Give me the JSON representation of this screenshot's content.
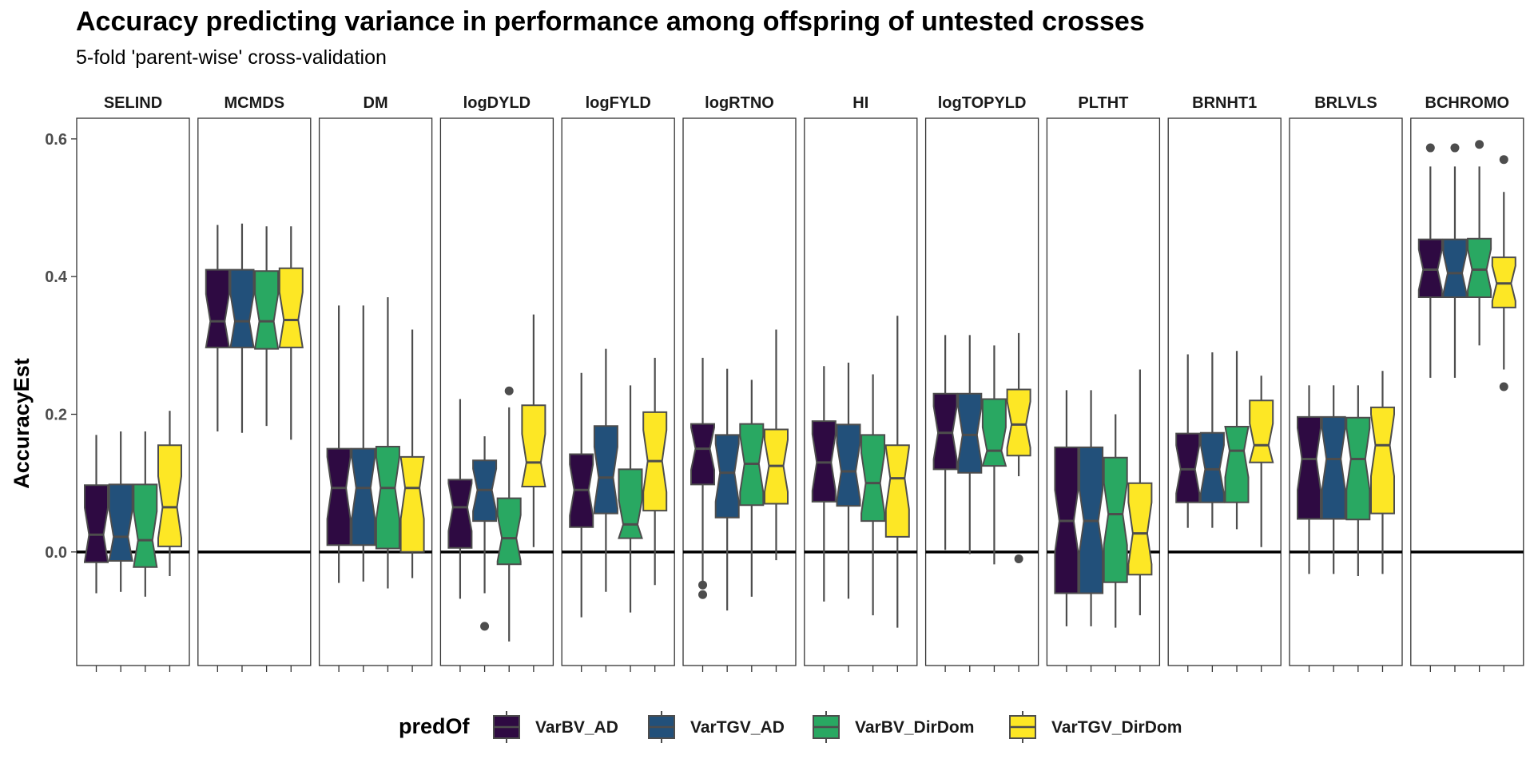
{
  "chart_data": {
    "type": "boxplot",
    "title": "Accuracy predicting variance in performance among offspring of untested crosses",
    "subtitle": "5-fold 'parent-wise' cross-validation",
    "ylabel": "AccuracyEst",
    "xlabel": "",
    "ylim": [
      -0.165,
      0.63
    ],
    "yticks": [
      0.0,
      0.2,
      0.4,
      0.6
    ],
    "ytick_labels": [
      "0.0",
      "0.2",
      "0.4",
      "0.6"
    ],
    "reference_line_y": 0.0,
    "notched": true,
    "legend": {
      "title": "predOf",
      "placement": "bottom",
      "entries": [
        "VarBV_AD",
        "VarTGV_AD",
        "VarBV_DirDom",
        "VarTGV_DirDom"
      ]
    },
    "colors": {
      "VarBV_AD": "#2e0a42",
      "VarTGV_AD": "#22507a",
      "VarBV_DirDom": "#29a862",
      "VarTGV_DirDom": "#fde725",
      "box_outline": "#4d4d4d",
      "reference_line": "#000000"
    },
    "panels": [
      {
        "name": "SELIND",
        "boxes": [
          {
            "min": -0.06,
            "q1": -0.015,
            "median": 0.025,
            "q3": 0.097,
            "max": 0.17,
            "outliers": []
          },
          {
            "min": -0.058,
            "q1": -0.013,
            "median": 0.022,
            "q3": 0.098,
            "max": 0.175,
            "outliers": []
          },
          {
            "min": -0.065,
            "q1": -0.022,
            "median": 0.017,
            "q3": 0.098,
            "max": 0.175,
            "outliers": []
          },
          {
            "min": -0.035,
            "q1": 0.008,
            "median": 0.065,
            "q3": 0.155,
            "max": 0.205,
            "outliers": []
          }
        ]
      },
      {
        "name": "MCMDS",
        "boxes": [
          {
            "min": 0.175,
            "q1": 0.297,
            "median": 0.335,
            "q3": 0.41,
            "max": 0.475,
            "outliers": []
          },
          {
            "min": 0.173,
            "q1": 0.297,
            "median": 0.335,
            "q3": 0.41,
            "max": 0.477,
            "outliers": []
          },
          {
            "min": 0.183,
            "q1": 0.295,
            "median": 0.335,
            "q3": 0.408,
            "max": 0.473,
            "outliers": []
          },
          {
            "min": 0.163,
            "q1": 0.297,
            "median": 0.337,
            "q3": 0.412,
            "max": 0.473,
            "outliers": []
          }
        ]
      },
      {
        "name": "DM",
        "boxes": [
          {
            "min": -0.045,
            "q1": 0.01,
            "median": 0.093,
            "q3": 0.15,
            "max": 0.358,
            "outliers": []
          },
          {
            "min": -0.043,
            "q1": 0.01,
            "median": 0.093,
            "q3": 0.15,
            "max": 0.358,
            "outliers": []
          },
          {
            "min": -0.053,
            "q1": 0.005,
            "median": 0.093,
            "q3": 0.153,
            "max": 0.37,
            "outliers": []
          },
          {
            "min": -0.038,
            "q1": 0.0,
            "median": 0.093,
            "q3": 0.138,
            "max": 0.323,
            "outliers": []
          }
        ]
      },
      {
        "name": "logDYLD",
        "boxes": [
          {
            "min": -0.068,
            "q1": 0.006,
            "median": 0.065,
            "q3": 0.105,
            "max": 0.222,
            "outliers": []
          },
          {
            "min": -0.06,
            "q1": 0.045,
            "median": 0.09,
            "q3": 0.133,
            "max": 0.168,
            "outliers": [
              -0.108
            ]
          },
          {
            "min": -0.13,
            "q1": -0.018,
            "median": 0.02,
            "q3": 0.078,
            "max": 0.21,
            "outliers": [
              0.234
            ]
          },
          {
            "min": 0.007,
            "q1": 0.095,
            "median": 0.13,
            "q3": 0.213,
            "max": 0.345,
            "outliers": []
          }
        ]
      },
      {
        "name": "logFYLD",
        "boxes": [
          {
            "min": -0.095,
            "q1": 0.036,
            "median": 0.09,
            "q3": 0.142,
            "max": 0.26,
            "outliers": []
          },
          {
            "min": -0.058,
            "q1": 0.056,
            "median": 0.108,
            "q3": 0.183,
            "max": 0.295,
            "outliers": []
          },
          {
            "min": -0.088,
            "q1": 0.02,
            "median": 0.04,
            "q3": 0.12,
            "max": 0.242,
            "outliers": []
          },
          {
            "min": -0.048,
            "q1": 0.06,
            "median": 0.132,
            "q3": 0.203,
            "max": 0.282,
            "outliers": []
          }
        ]
      },
      {
        "name": "logRTNO",
        "boxes": [
          {
            "min": -0.045,
            "q1": 0.098,
            "median": 0.15,
            "q3": 0.186,
            "max": 0.282,
            "outliers": [
              -0.062,
              -0.048
            ]
          },
          {
            "min": -0.085,
            "q1": 0.05,
            "median": 0.115,
            "q3": 0.17,
            "max": 0.266,
            "outliers": []
          },
          {
            "min": -0.065,
            "q1": 0.068,
            "median": 0.128,
            "q3": 0.186,
            "max": 0.25,
            "outliers": []
          },
          {
            "min": -0.012,
            "q1": 0.07,
            "median": 0.125,
            "q3": 0.178,
            "max": 0.323,
            "outliers": []
          }
        ]
      },
      {
        "name": "HI",
        "boxes": [
          {
            "min": -0.072,
            "q1": 0.073,
            "median": 0.13,
            "q3": 0.19,
            "max": 0.27,
            "outliers": []
          },
          {
            "min": -0.068,
            "q1": 0.067,
            "median": 0.117,
            "q3": 0.185,
            "max": 0.275,
            "outliers": []
          },
          {
            "min": -0.092,
            "q1": 0.045,
            "median": 0.1,
            "q3": 0.17,
            "max": 0.258,
            "outliers": []
          },
          {
            "min": -0.11,
            "q1": 0.022,
            "median": 0.107,
            "q3": 0.155,
            "max": 0.343,
            "outliers": []
          }
        ]
      },
      {
        "name": "logTOPYLD",
        "boxes": [
          {
            "min": 0.003,
            "q1": 0.12,
            "median": 0.173,
            "q3": 0.23,
            "max": 0.315,
            "outliers": []
          },
          {
            "min": -0.003,
            "q1": 0.115,
            "median": 0.17,
            "q3": 0.23,
            "max": 0.315,
            "outliers": []
          },
          {
            "min": -0.018,
            "q1": 0.125,
            "median": 0.147,
            "q3": 0.222,
            "max": 0.3,
            "outliers": []
          },
          {
            "min": 0.11,
            "q1": 0.14,
            "median": 0.185,
            "q3": 0.236,
            "max": 0.318,
            "outliers": [
              -0.01
            ]
          }
        ]
      },
      {
        "name": "PLTHT",
        "boxes": [
          {
            "min": -0.108,
            "q1": -0.06,
            "median": 0.045,
            "q3": 0.152,
            "max": 0.235,
            "outliers": []
          },
          {
            "min": -0.108,
            "q1": -0.06,
            "median": 0.045,
            "q3": 0.152,
            "max": 0.235,
            "outliers": []
          },
          {
            "min": -0.11,
            "q1": -0.044,
            "median": 0.055,
            "q3": 0.137,
            "max": 0.2,
            "outliers": []
          },
          {
            "min": -0.092,
            "q1": -0.033,
            "median": 0.027,
            "q3": 0.1,
            "max": 0.265,
            "outliers": []
          }
        ]
      },
      {
        "name": "BRNHT1",
        "boxes": [
          {
            "min": 0.035,
            "q1": 0.072,
            "median": 0.12,
            "q3": 0.172,
            "max": 0.287,
            "outliers": []
          },
          {
            "min": 0.035,
            "q1": 0.072,
            "median": 0.12,
            "q3": 0.173,
            "max": 0.29,
            "outliers": []
          },
          {
            "min": 0.033,
            "q1": 0.072,
            "median": 0.147,
            "q3": 0.182,
            "max": 0.292,
            "outliers": []
          },
          {
            "min": 0.007,
            "q1": 0.13,
            "median": 0.155,
            "q3": 0.22,
            "max": 0.256,
            "outliers": []
          }
        ]
      },
      {
        "name": "BRLVLS",
        "boxes": [
          {
            "min": -0.032,
            "q1": 0.048,
            "median": 0.135,
            "q3": 0.196,
            "max": 0.242,
            "outliers": []
          },
          {
            "min": -0.032,
            "q1": 0.048,
            "median": 0.135,
            "q3": 0.196,
            "max": 0.242,
            "outliers": []
          },
          {
            "min": -0.035,
            "q1": 0.047,
            "median": 0.135,
            "q3": 0.195,
            "max": 0.242,
            "outliers": []
          },
          {
            "min": -0.032,
            "q1": 0.056,
            "median": 0.155,
            "q3": 0.21,
            "max": 0.263,
            "outliers": []
          }
        ]
      },
      {
        "name": "BCHROMO",
        "boxes": [
          {
            "min": 0.253,
            "q1": 0.37,
            "median": 0.41,
            "q3": 0.454,
            "max": 0.56,
            "outliers": [
              0.587
            ]
          },
          {
            "min": 0.253,
            "q1": 0.37,
            "median": 0.405,
            "q3": 0.454,
            "max": 0.56,
            "outliers": [
              0.587
            ]
          },
          {
            "min": 0.3,
            "q1": 0.37,
            "median": 0.41,
            "q3": 0.455,
            "max": 0.56,
            "outliers": [
              0.592
            ]
          },
          {
            "min": 0.265,
            "q1": 0.355,
            "median": 0.39,
            "q3": 0.428,
            "max": 0.523,
            "outliers": [
              0.57,
              0.24
            ]
          }
        ]
      }
    ]
  }
}
